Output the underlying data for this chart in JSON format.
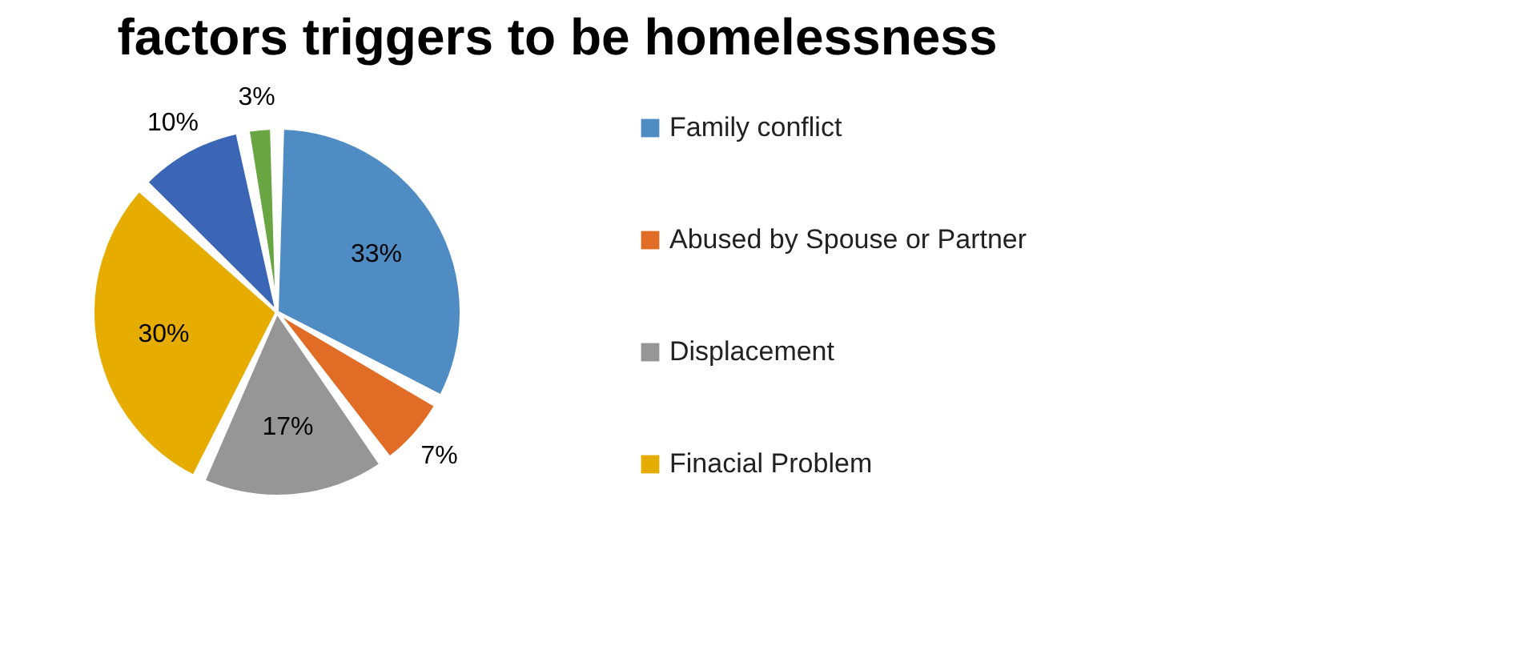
{
  "chart_data": {
    "type": "pie",
    "title": "factors triggers to be homelessness",
    "categories": [
      "Family conflict",
      "Abused by Spouse or Partner",
      "Displacement",
      "Finacial Problem",
      null,
      null
    ],
    "values": [
      33,
      7,
      17,
      30,
      10,
      3
    ],
    "value_labels": [
      "33%",
      "7%",
      "17%",
      "30%",
      "10%",
      "3%"
    ],
    "colors": [
      "#4f8cc4",
      "#e06c25",
      "#969696",
      "#e6ad00",
      "#3a66b5",
      "#6aa544"
    ],
    "legend": "right"
  }
}
